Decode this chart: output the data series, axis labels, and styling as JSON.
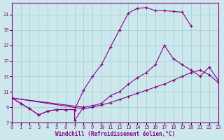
{
  "background_color": "#cce8ec",
  "grid_color": "#aad4d8",
  "line_color": "#880088",
  "xlabel": "Windchill (Refroidissement éolien,°C)",
  "xlim": [
    0,
    23
  ],
  "ylim": [
    7,
    22.5
  ],
  "yticks": [
    7,
    9,
    11,
    13,
    15,
    17,
    19,
    21
  ],
  "xticks": [
    0,
    1,
    2,
    3,
    4,
    5,
    6,
    7,
    8,
    9,
    10,
    11,
    12,
    13,
    14,
    15,
    16,
    17,
    18,
    19,
    20,
    21,
    22,
    23
  ],
  "series": [
    {
      "x": [
        0,
        1,
        2,
        3,
        4,
        5,
        6,
        7,
        8,
        9,
        10,
        11,
        12,
        13,
        14,
        15,
        16,
        17,
        18,
        19,
        20
      ],
      "y": [
        10.2,
        9.5,
        8.8,
        8.0,
        8.5,
        8.7,
        8.7,
        8.7,
        11.2,
        13.0,
        14.5,
        16.8,
        19.0,
        21.2,
        21.8,
        21.9,
        21.5,
        21.5,
        21.4,
        21.3,
        19.5
      ]
    },
    {
      "x": [
        0,
        8,
        9,
        10,
        11,
        12,
        13,
        14,
        15,
        16,
        17,
        18,
        19,
        20,
        21,
        22,
        23
      ],
      "y": [
        10.2,
        9.0,
        9.2,
        9.5,
        10.5,
        11.0,
        12.0,
        12.8,
        13.5,
        14.5,
        17.0,
        15.3,
        14.5,
        13.8,
        13.0,
        14.2,
        12.5
      ]
    },
    {
      "x": [
        0,
        8,
        9,
        10,
        11,
        12,
        13,
        14,
        15,
        16,
        17,
        18,
        19,
        20,
        21,
        22,
        23
      ],
      "y": [
        10.2,
        8.8,
        9.0,
        9.3,
        9.6,
        10.0,
        10.4,
        10.8,
        11.2,
        11.6,
        12.0,
        12.5,
        13.0,
        13.5,
        13.8,
        13.2,
        12.2
      ]
    },
    {
      "x": [
        0,
        1,
        2,
        3,
        4,
        5,
        6,
        7,
        7,
        8
      ],
      "y": [
        10.2,
        9.5,
        8.8,
        8.0,
        8.5,
        8.7,
        8.7,
        8.7,
        7.3,
        9.0
      ]
    }
  ]
}
